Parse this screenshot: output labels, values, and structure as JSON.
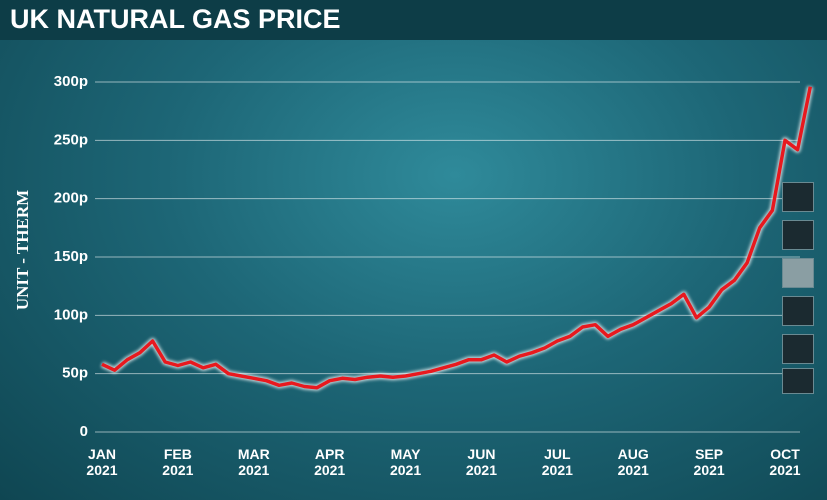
{
  "chart_data": {
    "type": "line",
    "title": "UK NATURAL GAS PRICE",
    "y_label": "UNIT - THERM",
    "categories": [
      "JAN 2021",
      null,
      null,
      null,
      null,
      null,
      "FEB 2021",
      null,
      null,
      null,
      null,
      null,
      "MAR 2021",
      null,
      null,
      null,
      null,
      null,
      "APR 2021",
      null,
      null,
      null,
      null,
      null,
      "MAY 2021",
      null,
      null,
      null,
      null,
      null,
      "JUN 2021",
      null,
      null,
      null,
      null,
      null,
      "JUL 2021",
      null,
      null,
      null,
      null,
      null,
      "AUG 2021",
      null,
      null,
      null,
      null,
      null,
      "SEP 2021",
      null,
      null,
      null,
      null,
      null,
      "OCT 2021",
      null,
      null
    ],
    "values": [
      58,
      53,
      62,
      68,
      78,
      60,
      57,
      60,
      55,
      58,
      50,
      48,
      46,
      44,
      40,
      42,
      39,
      38,
      44,
      46,
      45,
      47,
      48,
      47,
      48,
      50,
      52,
      55,
      58,
      62,
      62,
      66,
      60,
      65,
      68,
      72,
      78,
      82,
      90,
      92,
      82,
      88,
      92,
      98,
      104,
      110,
      118,
      98,
      107,
      122,
      130,
      145,
      175,
      190,
      250,
      242,
      296
    ],
    "color": "#e8191e",
    "ylim": [
      0,
      300
    ],
    "yticks": [
      0,
      {
        "value": 50,
        "label": "50p"
      },
      {
        "value": 100,
        "label": "100p"
      },
      {
        "value": 150,
        "label": "150p"
      },
      {
        "value": 200,
        "label": "200p"
      },
      {
        "value": 250,
        "label": "250p"
      },
      {
        "value": 300,
        "label": "300p"
      }
    ],
    "grid": true
  }
}
